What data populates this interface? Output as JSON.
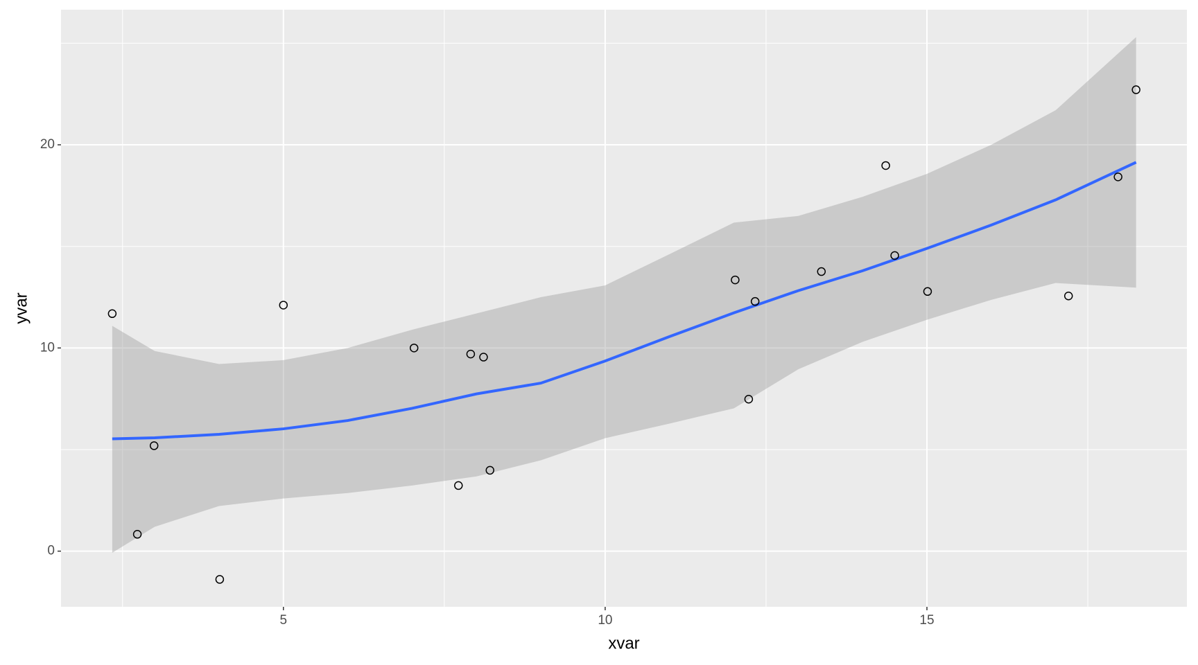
{
  "chart_data": {
    "type": "scatter",
    "x_label": "xvar",
    "y_label": "yvar",
    "points": {
      "x": [
        2.34,
        2.73,
        2.99,
        4.01,
        5.0,
        7.03,
        7.72,
        7.91,
        8.11,
        8.21,
        12.02,
        12.23,
        12.33,
        13.36,
        14.36,
        14.5,
        15.01,
        17.2,
        17.97,
        18.25
      ],
      "values": [
        11.69,
        0.83,
        5.19,
        -1.39,
        12.11,
        10.0,
        3.23,
        9.7,
        9.55,
        3.98,
        13.35,
        7.48,
        12.29,
        13.76,
        18.98,
        14.55,
        12.78,
        12.56,
        18.42,
        22.71
      ],
      "color": "#000000"
    },
    "smooth": {
      "x": [
        2.34,
        3,
        4,
        5,
        6,
        7,
        8,
        9,
        10,
        11,
        12,
        13,
        14,
        15,
        16,
        17,
        18.25
      ],
      "values": [
        5.53,
        5.58,
        5.75,
        6.02,
        6.43,
        7.03,
        7.74,
        8.27,
        9.36,
        10.56,
        11.73,
        12.82,
        13.8,
        14.9,
        16.05,
        17.29,
        19.14
      ],
      "lower": [
        -0.08,
        1.2,
        2.22,
        2.59,
        2.86,
        3.23,
        3.68,
        4.47,
        5.56,
        6.28,
        7.03,
        8.95,
        10.3,
        11.39,
        12.37,
        13.2,
        12.97
      ],
      "upper": [
        11.09,
        9.85,
        9.21,
        9.4,
        10.0,
        10.9,
        11.7,
        12.5,
        13.08,
        14.62,
        16.17,
        16.5,
        17.44,
        18.57,
        20.0,
        21.7,
        25.3
      ],
      "color": "#3366FF",
      "band_color": "#999999"
    },
    "xlim": [
      1.544,
      19.04
    ],
    "ylim": [
      -2.74,
      26.65
    ],
    "xticks": [
      5,
      10,
      15
    ],
    "yticks": [
      0,
      10,
      20
    ],
    "xminor": [
      2.5,
      7.5,
      12.5,
      17.5
    ],
    "yminor": [
      5,
      15,
      25
    ],
    "grid": true
  }
}
